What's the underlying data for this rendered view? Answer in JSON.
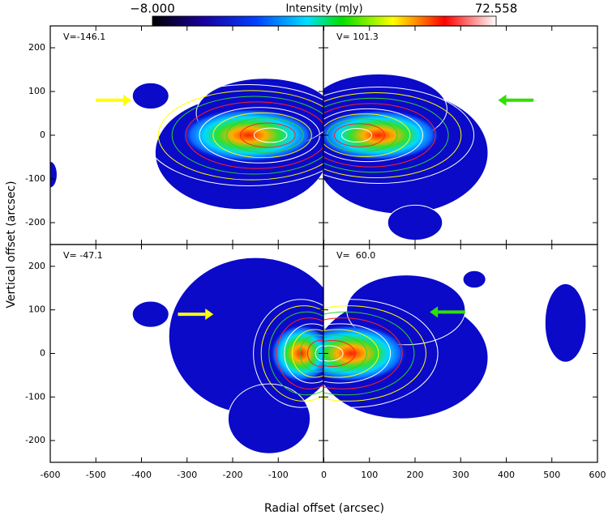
{
  "chart_data": {
    "type": "image",
    "colorbar": {
      "min": {
        "value": -8,
        "label": "−8.000"
      },
      "max": {
        "value": 72.558,
        "label": "72.558"
      },
      "label": "Intensity (mJy)"
    },
    "xlabel": "Radial offset (arcsec)",
    "ylabel": "Vertical offset (arcsec)",
    "xlim": [
      -600,
      600
    ],
    "xticks": [
      -600,
      -500,
      -400,
      -300,
      -200,
      -100,
      0,
      100,
      200,
      300,
      400,
      500,
      600
    ],
    "ylim": [
      -250,
      250
    ],
    "yticks": [
      -200,
      -100,
      0,
      100,
      200
    ],
    "panels": [
      {
        "label": "V=-146.1"
      },
      {
        "label": "V= 101.3"
      },
      {
        "label": "V= -47.1"
      },
      {
        "label": "V=  60.0"
      }
    ]
  }
}
